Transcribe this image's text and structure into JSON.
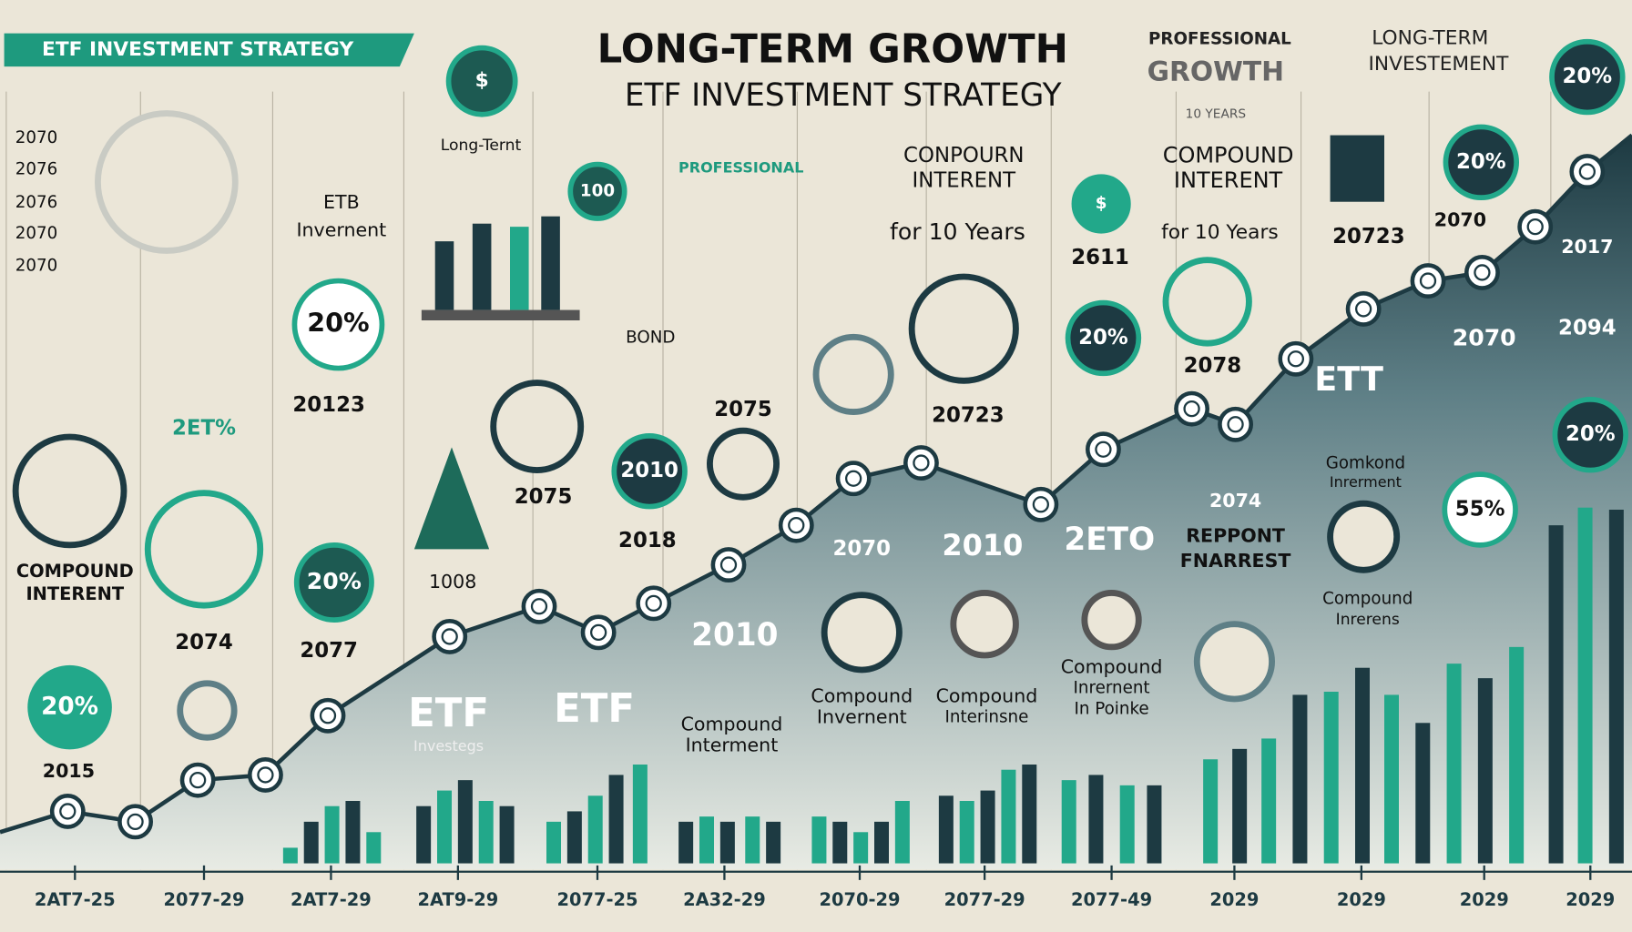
{
  "banner": "ETF INVESTMENT STRATEGY",
  "title": {
    "line1": "LONG-TERM GROWTH",
    "line2": "ETF INVESTMENT STRATEGY"
  },
  "top_center_right": {
    "line1": "PROFESSIONAL",
    "line2": "GROWTH",
    "line3": "10 YEARS"
  },
  "top_right": {
    "heading1": "LONG-TERM",
    "heading2": "INVESTEMENT"
  },
  "labels": [
    "2070",
    "2076",
    "2076",
    "2070",
    "2070",
    "COMPOUND",
    "INTERENT",
    "2015",
    "ETB",
    "Invernent",
    "20123",
    "2ET%",
    "2074",
    "2077",
    "Long-Ternt",
    "1008",
    "2075",
    "2018",
    "BOND",
    "2075",
    "PROFESSIONAL",
    "CONPOURN",
    "INTERENT",
    "for 10 Years",
    "20723",
    "2611",
    "2078",
    "COMPOUND",
    "INTERENT",
    "for 10 Years",
    "20723",
    "2070",
    "ETF",
    "Investegs",
    "ETF",
    "2010",
    "Compound",
    "Interment",
    "2070",
    "Compound",
    "Invernent",
    "2010",
    "Compound",
    "Interinsne",
    "2ETO",
    "Compound",
    "Inrernent",
    "In Poinke",
    "2074",
    "REPPONT",
    "FNARREST",
    "ETT",
    "Gomkond",
    "Inrerment",
    "Compound",
    "Inrerens",
    "2070",
    "2094",
    "2017"
  ],
  "badges": [
    "20%",
    "20%",
    "20%",
    "55%",
    "100",
    "2010",
    "20%",
    "$",
    "20%",
    "20%",
    "20%",
    "$"
  ],
  "period_labels": [
    "2AT7-25",
    "2077-29",
    "2AT7-29",
    "2AT9-29",
    "2077-25",
    "2A32-29",
    "2070-29",
    "2077-29",
    "2077-49",
    "2029",
    "2029",
    "2029",
    "2029"
  ]
}
